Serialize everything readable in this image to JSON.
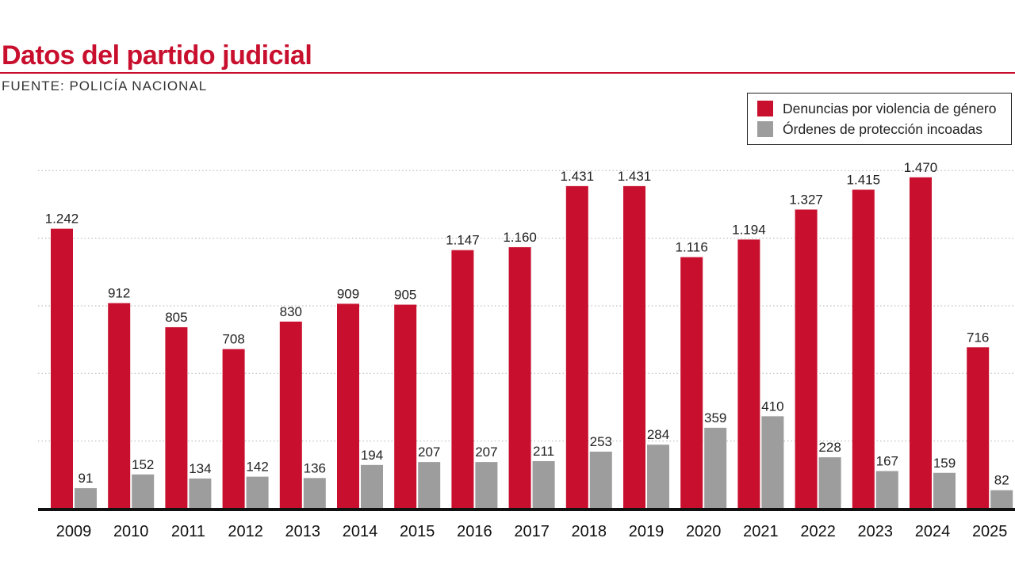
{
  "header": {
    "title": "Datos del partido judicial",
    "source": "FUENTE: POLICÍA NACIONAL"
  },
  "colors": {
    "accent": "#c8102e",
    "series_1": "#c8102e",
    "series_2": "#9d9d9d",
    "gridline": "#b0b0b0",
    "baseline": "#111111"
  },
  "chart_data": {
    "type": "bar",
    "title": "",
    "xlabel": "",
    "ylabel": "",
    "ylim": [
      0,
      1500
    ],
    "gridlines": [
      300,
      600,
      900,
      1200,
      1500
    ],
    "grid": "horizontal-dotted",
    "legend_position": "top-right",
    "categories": [
      "2009",
      "2010",
      "2011",
      "2012",
      "2013",
      "2014",
      "2015",
      "2016",
      "2017",
      "2018",
      "2019",
      "2020",
      "2021",
      "2022",
      "2023",
      "2024",
      "2025"
    ],
    "series": [
      {
        "name": "Denuncias por violencia de género",
        "values": [
          1242,
          912,
          805,
          708,
          830,
          909,
          905,
          1147,
          1160,
          1431,
          1431,
          1116,
          1194,
          1327,
          1415,
          1470,
          716
        ],
        "labels": [
          "1.242",
          "912",
          "805",
          "708",
          "830",
          "909",
          "905",
          "1.147",
          "1.160",
          "1.431",
          "1.431",
          "1.116",
          "1.194",
          "1.327",
          "1.415",
          "1.470",
          "716"
        ]
      },
      {
        "name": "Órdenes de protección incoadas",
        "values": [
          91,
          152,
          134,
          142,
          136,
          194,
          207,
          207,
          211,
          253,
          284,
          359,
          410,
          228,
          167,
          159,
          82
        ],
        "labels": [
          "91",
          "152",
          "134",
          "142",
          "136",
          "194",
          "207",
          "207",
          "211",
          "253",
          "284",
          "359",
          "410",
          "228",
          "167",
          "159",
          "82"
        ]
      }
    ]
  }
}
